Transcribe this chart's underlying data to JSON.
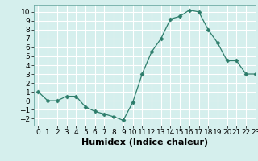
{
  "x": [
    0,
    1,
    2,
    3,
    4,
    5,
    6,
    7,
    8,
    9,
    10,
    11,
    12,
    13,
    14,
    15,
    16,
    17,
    18,
    19,
    20,
    21,
    22,
    23
  ],
  "y": [
    1.0,
    0.0,
    0.0,
    0.5,
    0.5,
    -0.7,
    -1.2,
    -1.5,
    -1.8,
    -2.2,
    -0.2,
    3.0,
    5.5,
    7.0,
    9.2,
    9.5,
    10.2,
    10.0,
    8.0,
    6.5,
    4.5,
    4.5,
    3.0,
    3.0
  ],
  "xlabel": "Humidex (Indice chaleur)",
  "xlim": [
    -0.5,
    23
  ],
  "ylim": [
    -2.8,
    10.8
  ],
  "yticks": [
    -2,
    -1,
    0,
    1,
    2,
    3,
    4,
    5,
    6,
    7,
    8,
    9,
    10
  ],
  "xticks": [
    0,
    1,
    2,
    3,
    4,
    5,
    6,
    7,
    8,
    9,
    10,
    11,
    12,
    13,
    14,
    15,
    16,
    17,
    18,
    19,
    20,
    21,
    22,
    23
  ],
  "line_color": "#2d7d6b",
  "marker": "D",
  "marker_size": 2.5,
  "bg_color": "#d5efed",
  "grid_color": "#ffffff",
  "xlabel_fontsize": 8,
  "tick_fontsize": 6.5
}
